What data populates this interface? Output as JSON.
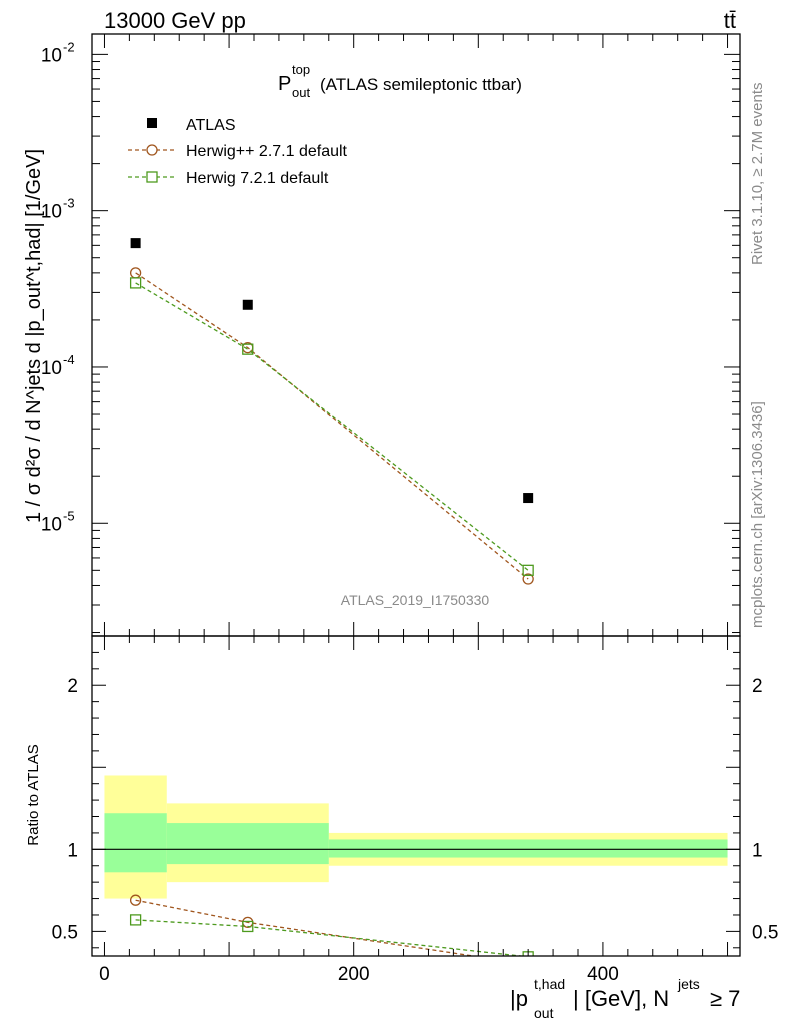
{
  "header": {
    "energy_label": "13000 GeV pp",
    "process_label": "tt̄"
  },
  "side": {
    "rivet_label": "Rivet 3.1.10, ≥ 2.7M events",
    "mcplots_label": "mcplots.cern.ch [arXiv:1306.3436]"
  },
  "colors": {
    "atlas": "#000000",
    "herwig_pp": "#a0561e",
    "herwig7": "#4d9a1e",
    "band_stat": "#99ff99",
    "band_total": "#ffff99"
  },
  "chart_data": [
    {
      "type": "scatter",
      "panel": "main",
      "title": "(ATLAS semileptonic ttbar)",
      "title_math": {
        "base": "P",
        "sup": "top",
        "sub": "out"
      },
      "ylabel": "1 / σ d²σ / d N^jets d |p_out^t,had| [1/GeV]",
      "y_scale": "log",
      "xlim": [
        -10,
        510
      ],
      "ylim": [
        1.9e-06,
        0.0135
      ],
      "yticks_major": [
        1e-05,
        0.0001,
        0.001,
        0.01
      ],
      "ytick_labels": [
        {
          "base": "10",
          "exp": "-5"
        },
        {
          "base": "10",
          "exp": "-4"
        },
        {
          "base": "10",
          "exp": "-3"
        },
        {
          "base": "10",
          "exp": "-2"
        }
      ],
      "watermark": "ATLAS_2019_I1750330",
      "legend_position": "top-left",
      "series": [
        {
          "name": "ATLAS",
          "marker": "filled-square",
          "line": "none",
          "x": [
            25,
            115,
            340
          ],
          "y": [
            0.00062,
            0.00025,
            1.45e-05
          ]
        },
        {
          "name": "Herwig++ 2.7.1 default",
          "marker": "open-circle",
          "line": "dashed",
          "x": [
            25,
            115,
            340
          ],
          "y": [
            0.0004,
            0.000133,
            4.4e-06
          ]
        },
        {
          "name": "Herwig 7.2.1 default",
          "marker": "open-square",
          "line": "dashed",
          "x": [
            25,
            115,
            340
          ],
          "y": [
            0.000345,
            0.00013,
            5e-06
          ]
        }
      ]
    },
    {
      "type": "line",
      "panel": "ratio",
      "ylabel": "Ratio to ATLAS",
      "xlabel": "|p_out^t,had| [GeV], N^jets ≥ 7",
      "xlabel_parts": {
        "p": "|p",
        "sup": "t,had",
        "sub": "out",
        "mid": "| [GeV], N",
        "sup2": "jets",
        "tail": " ≥ 7"
      },
      "xlim": [
        -10,
        510
      ],
      "ylim": [
        0.35,
        2.3
      ],
      "xticks": [
        0,
        200,
        400
      ],
      "xtick_labels": [
        "0",
        "200",
        "400"
      ],
      "yticks": [
        0.5,
        1,
        2
      ],
      "ytick_labels": [
        "0.5",
        "1",
        "2"
      ],
      "reference_line": 1,
      "bands": [
        {
          "x0": 0,
          "x1": 50,
          "total": [
            0.7,
            1.45
          ],
          "stat": [
            0.86,
            1.22
          ]
        },
        {
          "x0": 50,
          "x1": 180,
          "total": [
            0.8,
            1.28
          ],
          "stat": [
            0.91,
            1.16
          ]
        },
        {
          "x0": 180,
          "x1": 500,
          "total": [
            0.9,
            1.1
          ],
          "stat": [
            0.95,
            1.06
          ]
        }
      ],
      "series": [
        {
          "name": "Herwig++ 2.7.1 default",
          "marker": "open-circle",
          "x": [
            25,
            115,
            340
          ],
          "y": [
            0.69,
            0.555,
            0.3
          ]
        },
        {
          "name": "Herwig 7.2.1 default",
          "marker": "open-square",
          "x": [
            25,
            115,
            340
          ],
          "y": [
            0.57,
            0.53,
            0.345
          ]
        }
      ]
    }
  ]
}
